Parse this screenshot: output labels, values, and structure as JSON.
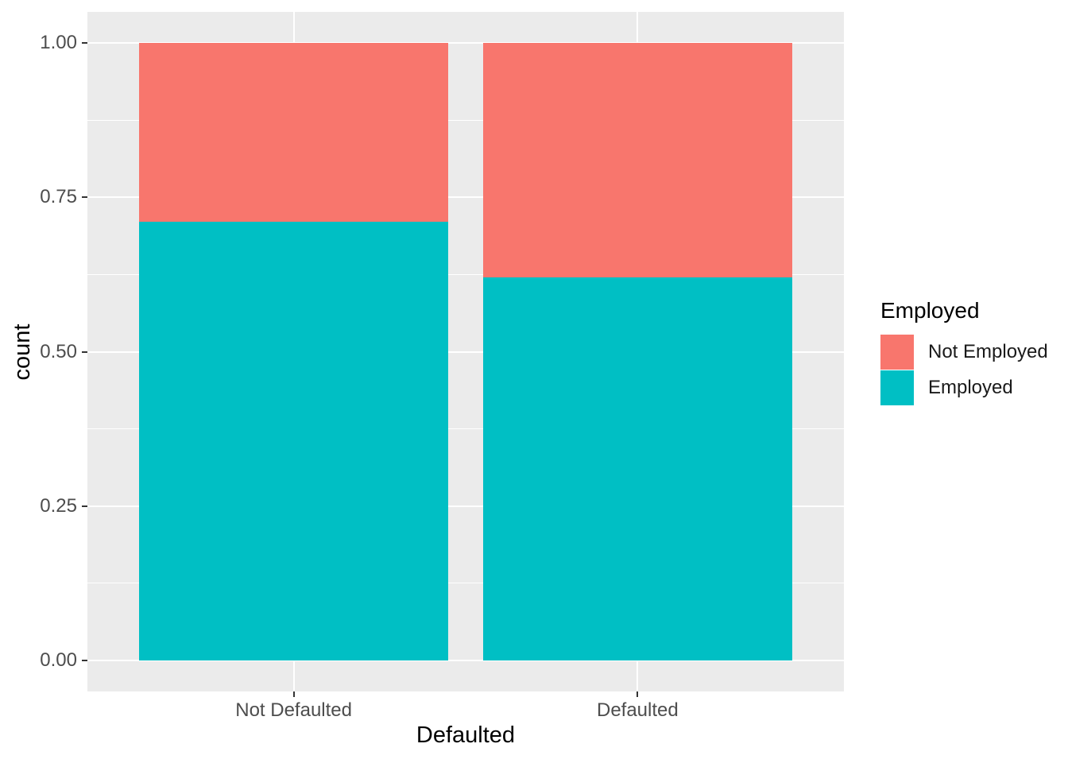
{
  "chart_data": {
    "type": "bar",
    "mode": "stacked-fill",
    "title": "",
    "xlabel": "Defaulted",
    "ylabel": "count",
    "categories": [
      "Not Defaulted",
      "Defaulted"
    ],
    "series": [
      {
        "name": "Not Employed",
        "color": "#F8766D",
        "values": [
          0.29,
          0.38
        ]
      },
      {
        "name": "Employed",
        "color": "#00BFC4",
        "values": [
          0.71,
          0.62
        ]
      }
    ],
    "stack_note": "series stacked bottom-to-top in reverse listed order (Employed on bottom, Not Employed on top)",
    "y_axis": {
      "ylim": [
        0,
        1
      ],
      "ticks": [
        {
          "value": 0.0,
          "label": "0.00"
        },
        {
          "value": 0.25,
          "label": "0.25"
        },
        {
          "value": 0.5,
          "label": "0.50"
        },
        {
          "value": 0.75,
          "label": "0.75"
        },
        {
          "value": 1.0,
          "label": "1.00"
        }
      ],
      "minor_gridlines": [
        0.125,
        0.375,
        0.625,
        0.875
      ]
    },
    "grid": true,
    "legend": {
      "title": "Employed",
      "position": "right",
      "entries": [
        {
          "label": "Not Employed",
          "color": "#F8766D"
        },
        {
          "label": "Employed",
          "color": "#00BFC4"
        }
      ]
    },
    "colors": {
      "panel_bg": "#EBEBEB",
      "grid": "#FFFFFF",
      "tick_text": "#4D4D4D",
      "title_text": "#000000",
      "tick_mark": "#333333"
    }
  }
}
